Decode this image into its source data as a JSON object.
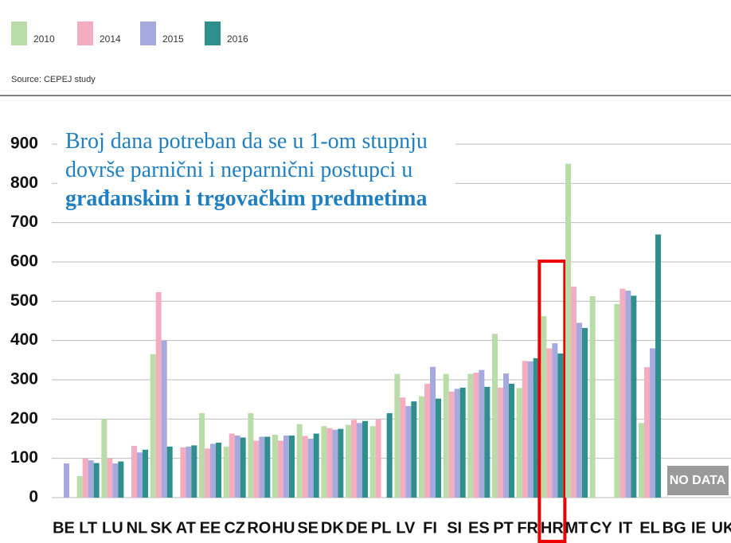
{
  "chart_data": {
    "type": "bar",
    "title": [
      {
        "text": "Broj dana potreban da se u 1-om stupnju dovrše parnični i neparnični postupci u "
      },
      {
        "text": "građanskim i trgovačkim predmetima",
        "bold": true
      }
    ],
    "source": "Source: CEPEJ study",
    "annotation": "NO DATA",
    "highlight": "HR",
    "categories": [
      "BE",
      "LT",
      "LU",
      "NL",
      "SK",
      "AT",
      "EE",
      "CZ",
      "RO",
      "HU",
      "SE",
      "DK",
      "DE",
      "PL",
      "LV",
      "FI",
      "SI",
      "ES",
      "PT",
      "FR",
      "HR",
      "MT",
      "CY",
      "IT",
      "EL",
      "BG",
      "IE",
      "UK"
    ],
    "series": [
      {
        "name": "2010",
        "color": "#b9dca9",
        "values": [
          null,
          55,
          200,
          null,
          365,
          null,
          215,
          130,
          215,
          160,
          187,
          182,
          185,
          182,
          315,
          258,
          315,
          315,
          417,
          279,
          462,
          850,
          513,
          493,
          190,
          null,
          null,
          null
        ]
      },
      {
        "name": "2014",
        "color": "#f4adc0",
        "values": [
          null,
          100,
          100,
          132,
          523,
          128,
          125,
          163,
          145,
          145,
          157,
          177,
          198,
          200,
          255,
          290,
          270,
          318,
          280,
          348,
          380,
          537,
          null,
          532,
          332,
          null,
          null,
          null
        ]
      },
      {
        "name": "2015",
        "color": "#a6a9dd",
        "values": [
          87,
          95,
          87,
          115,
          400,
          130,
          137,
          158,
          155,
          158,
          150,
          173,
          190,
          null,
          233,
          333,
          277,
          325,
          316,
          347,
          393,
          445,
          null,
          527,
          380,
          null,
          null,
          null
        ]
      },
      {
        "name": "2016",
        "color": "#2f8f8c",
        "values": [
          null,
          88,
          92,
          122,
          130,
          133,
          140,
          153,
          155,
          158,
          163,
          175,
          195,
          215,
          245,
          252,
          280,
          282,
          290,
          355,
          367,
          432,
          null,
          514,
          670,
          null,
          null,
          null
        ]
      }
    ],
    "ylim": [
      0,
      900
    ],
    "yticks": [
      0,
      100,
      200,
      300,
      400,
      500,
      600,
      700,
      800,
      900
    ],
    "grid": true
  }
}
